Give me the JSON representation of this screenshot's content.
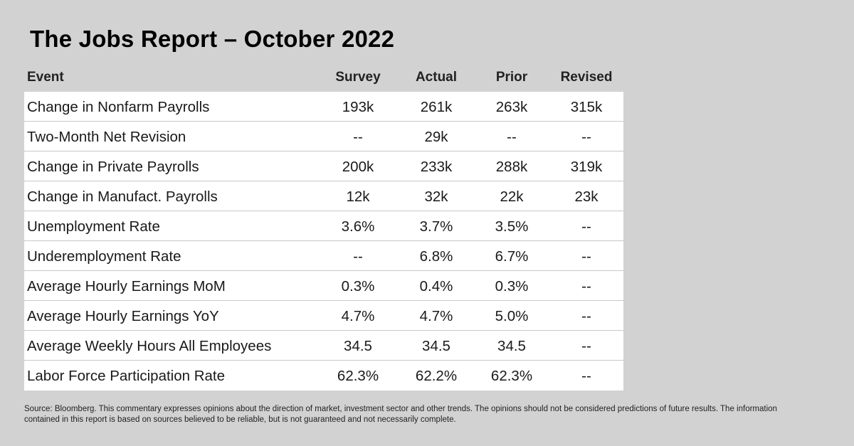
{
  "title": "The Jobs Report – October 2022",
  "columns": [
    "Event",
    "Survey",
    "Actual",
    "Prior",
    "Revised"
  ],
  "rows": [
    {
      "event": "Change in Nonfarm Payrolls",
      "survey": "193k",
      "actual": "261k",
      "prior": "263k",
      "revised": "315k"
    },
    {
      "event": "Two-Month Net Revision",
      "survey": "--",
      "actual": "29k",
      "prior": "--",
      "revised": "--"
    },
    {
      "event": "Change in Private Payrolls",
      "survey": "200k",
      "actual": "233k",
      "prior": "288k",
      "revised": "319k"
    },
    {
      "event": "Change in Manufact. Payrolls",
      "survey": "12k",
      "actual": "32k",
      "prior": "22k",
      "revised": "23k"
    },
    {
      "event": "Unemployment Rate",
      "survey": "3.6%",
      "actual": "3.7%",
      "prior": "3.5%",
      "revised": "--"
    },
    {
      "event": "Underemployment Rate",
      "survey": "--",
      "actual": "6.8%",
      "prior": "6.7%",
      "revised": "--"
    },
    {
      "event": "Average Hourly Earnings MoM",
      "survey": "0.3%",
      "actual": "0.4%",
      "prior": "0.3%",
      "revised": "--"
    },
    {
      "event": "Average Hourly Earnings YoY",
      "survey": "4.7%",
      "actual": "4.7%",
      "prior": "5.0%",
      "revised": "--"
    },
    {
      "event": "Average Weekly Hours All Employees",
      "survey": "34.5",
      "actual": "34.5",
      "prior": "34.5",
      "revised": "--"
    },
    {
      "event": "Labor Force Participation Rate",
      "survey": "62.3%",
      "actual": "62.2%",
      "prior": "62.3%",
      "revised": "--"
    }
  ],
  "footer": "Source: Bloomberg. This commentary expresses opinions about the direction of market, investment sector and other trends. The opinions should not be considered predictions of future results. The information contained in this report is based on sources believed to be reliable, but is not guaranteed and not necessarily complete."
}
